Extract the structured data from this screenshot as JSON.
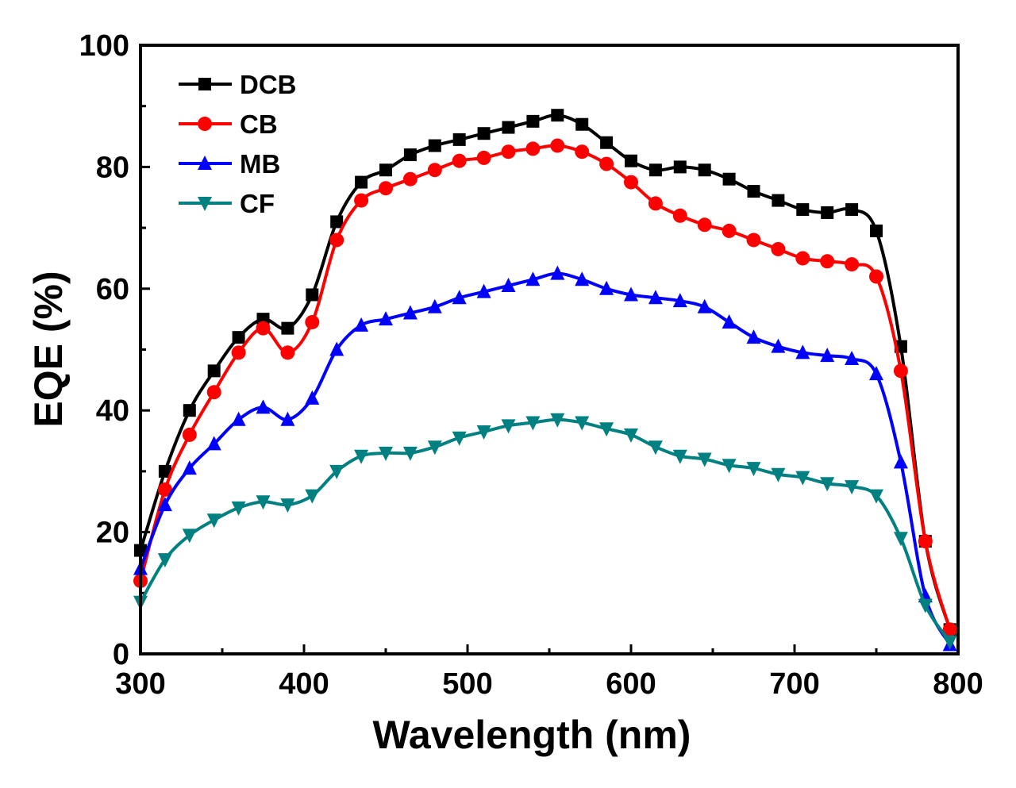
{
  "chart_data": {
    "type": "line",
    "title": "",
    "xlabel": "Wavelength (nm)",
    "ylabel": "EQE (%)",
    "xlim": [
      300,
      800
    ],
    "ylim": [
      0,
      100
    ],
    "xticks": [
      "300",
      "400",
      "500",
      "600",
      "700",
      "800"
    ],
    "yticks": [
      "0",
      "20",
      "40",
      "60",
      "80",
      "100"
    ],
    "legend_position": "top-left",
    "x": [
      300,
      315,
      330,
      345,
      360,
      375,
      390,
      405,
      420,
      435,
      450,
      465,
      480,
      495,
      510,
      525,
      540,
      555,
      570,
      585,
      600,
      615,
      630,
      645,
      660,
      675,
      690,
      705,
      720,
      735,
      750,
      765,
      780,
      795
    ],
    "series": [
      {
        "name": "DCB",
        "color": "#000000",
        "marker": "square",
        "values": [
          17,
          30,
          40,
          46.5,
          52,
          55,
          53.5,
          59,
          71,
          77.5,
          79.5,
          82,
          83.5,
          84.5,
          85.5,
          86.5,
          87.5,
          88.5,
          87,
          84,
          81,
          79.5,
          80,
          79.5,
          78,
          76,
          74.5,
          73,
          72.5,
          73,
          69.5,
          50.5,
          18.5,
          4
        ]
      },
      {
        "name": "CB",
        "color": "#ff0000",
        "marker": "circle",
        "values": [
          12,
          27,
          36,
          43,
          49.5,
          53.5,
          49.5,
          54.5,
          68,
          74.5,
          76.5,
          78,
          79.5,
          81,
          81.5,
          82.5,
          83,
          83.5,
          82.5,
          80.5,
          77.5,
          74,
          72,
          70.5,
          69.5,
          68,
          66.5,
          65,
          64.5,
          64,
          62,
          46.5,
          18.5,
          4
        ]
      },
      {
        "name": "MB",
        "color": "#0000ff",
        "marker": "triangle-up",
        "values": [
          14,
          24.5,
          30.5,
          34.5,
          38.5,
          40.5,
          38.5,
          42,
          50,
          54,
          55,
          56,
          57,
          58.5,
          59.5,
          60.5,
          61.5,
          62.5,
          61.5,
          60,
          59,
          58.5,
          58,
          57,
          54.5,
          52,
          50.5,
          49.5,
          49,
          48.5,
          46,
          31.5,
          9.5,
          1.5
        ]
      },
      {
        "name": "CF",
        "color": "#008080",
        "marker": "triangle-down",
        "values": [
          8.5,
          15.5,
          19.5,
          22,
          24,
          25,
          24.5,
          26,
          30,
          32.5,
          33,
          33,
          34,
          35.5,
          36.5,
          37.5,
          38,
          38.5,
          38,
          37,
          36,
          34,
          32.5,
          32,
          31,
          30.5,
          29.5,
          29,
          28,
          27.5,
          26,
          19,
          8,
          2
        ]
      }
    ]
  }
}
